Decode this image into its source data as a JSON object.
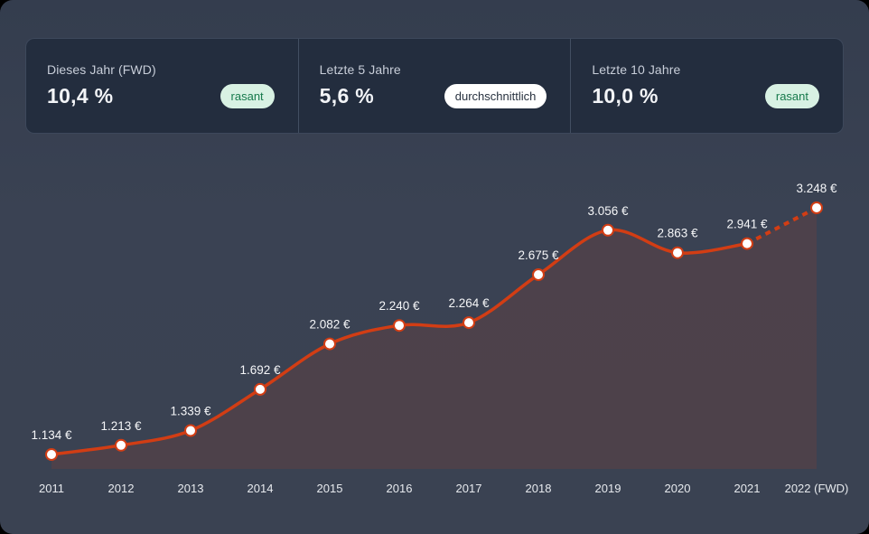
{
  "window": {
    "background": "#3a4252",
    "panel_background": "#232d3e"
  },
  "stats_panel": {
    "cards": [
      {
        "label": "Dieses Jahr (FWD)",
        "value": "10,4 %",
        "badge": "rasant",
        "badge_variant": "green"
      },
      {
        "label": "Letzte 5 Jahre",
        "value": "5,6 %",
        "badge": "durchschnittlich",
        "badge_variant": "white"
      },
      {
        "label": "Letzte 10 Jahre",
        "value": "10,0 %",
        "badge": "rasant",
        "badge_variant": "green"
      }
    ]
  },
  "colors": {
    "accent_line": "#d23d14",
    "area_fill_opacity": 0.13,
    "marker_fill": "#ffffff",
    "badge_green_bg": "#d8f1e3",
    "badge_green_text": "#177a4c",
    "badge_white_bg": "#ffffff",
    "badge_white_text": "#27313f"
  },
  "chart_data": {
    "type": "line",
    "area": true,
    "grid": false,
    "legend": "none",
    "smooth": true,
    "last_segment_dotted": true,
    "categories": [
      "2011",
      "2012",
      "2013",
      "2014",
      "2015",
      "2016",
      "2017",
      "2018",
      "2019",
      "2020",
      "2021",
      "2022 (FWD)"
    ],
    "values": [
      1134,
      1213,
      1339,
      1692,
      2082,
      2240,
      2264,
      2675,
      3056,
      2863,
      2941,
      3248
    ],
    "point_labels": [
      "1.134 €",
      "1.213 €",
      "1.339 €",
      "1.692 €",
      "2.082 €",
      "2.240 €",
      "2.264 €",
      "2.675 €",
      "3.056 €",
      "2.863 €",
      "2.941 €",
      "3.248 €"
    ],
    "title": "",
    "xlabel": "",
    "ylabel": "",
    "unit": "€",
    "line_color": "#d23d14",
    "marker": {
      "shape": "circle",
      "fill": "#ffffff",
      "stroke": "#d23d14"
    }
  }
}
